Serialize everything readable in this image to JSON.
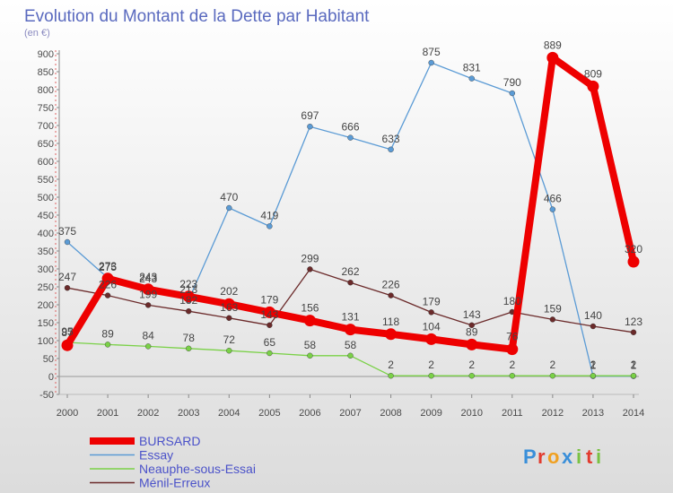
{
  "chart_data": {
    "type": "line",
    "title": "Evolution du Montant de la Dette par Habitant",
    "subtitle": "(en €)",
    "ylim": [
      -50,
      900
    ],
    "yticks": [
      -50,
      0,
      50,
      100,
      150,
      200,
      250,
      300,
      350,
      400,
      450,
      500,
      550,
      600,
      650,
      700,
      750,
      800,
      850,
      900
    ],
    "x": [
      "2000",
      "2001",
      "2002",
      "2003",
      "2004",
      "2005",
      "2006",
      "2007",
      "2008",
      "2009",
      "2010",
      "2011",
      "2012",
      "2013",
      "2014"
    ],
    "grid": false,
    "legend_position": "bottom-left",
    "series": [
      {
        "name": "Essay",
        "color": "#5b9bd5",
        "values": [
          375,
          275,
          243,
          213,
          470,
          419,
          697,
          666,
          633,
          875,
          831,
          790,
          466,
          1,
          1
        ],
        "labels": [
          "375",
          "275",
          "243",
          "213",
          "470",
          "419",
          "697",
          "666",
          "633",
          "875",
          "831",
          "790",
          "466",
          "1",
          "1"
        ]
      },
      {
        "name": "Nеauphe-sous-Essai",
        "color": "#7ad147",
        "values": [
          95,
          89,
          84,
          78,
          72,
          65,
          58,
          58,
          2,
          2,
          2,
          2,
          2,
          2,
          2
        ],
        "labels": [
          "95",
          "89",
          "84",
          "78",
          "72",
          "65",
          "58",
          "58",
          "2",
          "2",
          "2",
          "2",
          "2",
          "2",
          "2"
        ]
      },
      {
        "name": "Ménil-Erreux",
        "color": "#6b2a2a",
        "values": [
          247,
          226,
          199,
          182,
          163,
          143,
          299,
          262,
          226,
          179,
          143,
          180,
          159,
          140,
          123
        ],
        "labels": [
          "247",
          "226",
          "199",
          "182",
          "163",
          "143",
          "299",
          "262",
          "226",
          "179",
          "143",
          "180",
          "159",
          "140",
          "123"
        ]
      },
      {
        "name": "BURSARD",
        "color": "#ee0000",
        "values": [
          87,
          273,
          243,
          223,
          202,
          179,
          156,
          131,
          118,
          104,
          89,
          76,
          889,
          809,
          320
        ],
        "labels": [
          "87",
          "273",
          "243",
          "223",
          "202",
          "179",
          "156",
          "131",
          "118",
          "104",
          "89",
          "76",
          "889",
          "809",
          "320"
        ]
      }
    ],
    "legend": [
      "BURSARD",
      "Essay",
      "Nеauphe-sous-Essai",
      "Ménil-Erreux"
    ],
    "text_color": "#4a4a4a",
    "title_color": "#5a6abf"
  },
  "brand": {
    "name": "Proxiti",
    "letters": [
      "P",
      "r",
      "o",
      "x",
      "i",
      "t",
      "i"
    ],
    "colors": [
      "#3a8fd9",
      "#e23b2e",
      "#f0a020",
      "#3a8fd9",
      "#7ac143",
      "#e23b2e",
      "#7ac143"
    ]
  }
}
